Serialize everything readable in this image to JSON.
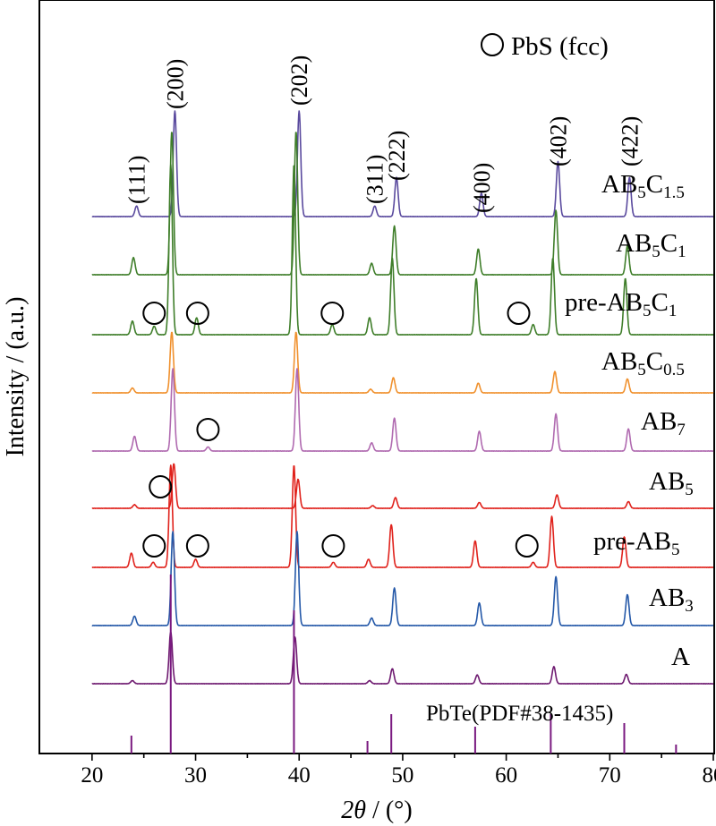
{
  "chart_data": {
    "type": "line",
    "xlabel_var": "2θ",
    "xlabel_unit": " / (°)",
    "ylabel": "Intensity / (a.u.)",
    "xlim": [
      15,
      80
    ],
    "xticks": [
      20,
      30,
      40,
      50,
      60,
      70,
      80
    ],
    "y_ticks_shown": false,
    "grid": false,
    "legend": {
      "marker": "open-circle",
      "label": "PbS (fcc)",
      "placement": "top-right"
    },
    "hkl_labels": [
      {
        "x": 24.3,
        "text": "(111)"
      },
      {
        "x": 28.0,
        "text": "(200)"
      },
      {
        "x": 40.0,
        "text": "(202)"
      },
      {
        "x": 47.3,
        "text": "(311)"
      },
      {
        "x": 49.4,
        "text": "(222)"
      },
      {
        "x": 57.6,
        "text": "(400)"
      },
      {
        "x": 65.0,
        "text": "(402)"
      },
      {
        "x": 71.9,
        "text": "(422)"
      }
    ],
    "series": [
      {
        "name": "AB5C1.5",
        "main": "AB",
        "sub1": "5",
        "mid": "C",
        "sub2": "1.5",
        "color": "#5a4a9e",
        "shift": 0.3,
        "peaks": [
          [
            24.3,
            0.1
          ],
          [
            28.0,
            1.0
          ],
          [
            40.0,
            1.0
          ],
          [
            47.3,
            0.1
          ],
          [
            49.4,
            0.37
          ],
          [
            57.6,
            0.22
          ],
          [
            65.0,
            0.52
          ],
          [
            71.9,
            0.37
          ]
        ]
      },
      {
        "name": "AB5C1",
        "main": "AB",
        "sub1": "5",
        "mid": "C",
        "sub2": "1",
        "color": "#3f7e2a",
        "shift": 0.0,
        "peaks": [
          [
            24.0,
            0.12
          ],
          [
            27.7,
            1.0
          ],
          [
            39.7,
            1.0
          ],
          [
            47.0,
            0.08
          ],
          [
            49.2,
            0.34
          ],
          [
            57.3,
            0.18
          ],
          [
            64.8,
            0.45
          ],
          [
            71.7,
            0.2
          ]
        ]
      },
      {
        "name": "pre-AB5C1",
        "main": "pre-AB",
        "sub1": "5",
        "mid": "C",
        "sub2": "1",
        "color": "#3f7e2a",
        "shift": -0.2,
        "peaks": [
          [
            23.9,
            0.08
          ],
          [
            26.0,
            0.05
          ],
          [
            27.6,
            1.0
          ],
          [
            30.1,
            0.1
          ],
          [
            39.5,
            1.0
          ],
          [
            43.2,
            0.06
          ],
          [
            46.8,
            0.1
          ],
          [
            49.0,
            0.45
          ],
          [
            57.1,
            0.33
          ],
          [
            62.6,
            0.06
          ],
          [
            64.5,
            0.45
          ],
          [
            71.5,
            0.33
          ]
        ]
      },
      {
        "name": "AB5C0.5",
        "main": "AB",
        "sub1": "5",
        "mid": "C",
        "sub2": "0.5",
        "color": "#f0912e",
        "shift": 0.0,
        "peaks": [
          [
            23.9,
            0.08
          ],
          [
            27.7,
            1.0
          ],
          [
            39.7,
            1.0
          ],
          [
            46.9,
            0.06
          ],
          [
            49.1,
            0.25
          ],
          [
            57.3,
            0.16
          ],
          [
            64.7,
            0.35
          ],
          [
            71.7,
            0.23
          ]
        ]
      },
      {
        "name": "AB7",
        "main": "AB",
        "sub1": "7",
        "mid": "",
        "sub2": "",
        "color": "#b06ab0",
        "shift": 0.1,
        "peaks": [
          [
            24.1,
            0.18
          ],
          [
            27.8,
            1.0
          ],
          [
            31.2,
            0.05
          ],
          [
            39.8,
            1.0
          ],
          [
            47.0,
            0.1
          ],
          [
            49.2,
            0.4
          ],
          [
            57.4,
            0.24
          ],
          [
            64.8,
            0.45
          ],
          [
            71.8,
            0.27
          ]
        ]
      },
      {
        "name": "AB5",
        "main": "AB",
        "sub1": "5",
        "mid": "",
        "sub2": "",
        "color": "#e0221c",
        "shift": 0.2,
        "peaks": [
          [
            24.1,
            0.08
          ],
          [
            27.9,
            1.0
          ],
          [
            39.9,
            0.65
          ],
          [
            47.1,
            0.06
          ],
          [
            49.3,
            0.24
          ],
          [
            57.4,
            0.13
          ],
          [
            64.9,
            0.3
          ],
          [
            71.8,
            0.15
          ]
        ]
      },
      {
        "name": "pre-AB5",
        "main": "pre-AB",
        "sub1": "5",
        "mid": "",
        "sub2": "",
        "color": "#e0221c",
        "shift": -0.2,
        "peaks": [
          [
            23.8,
            0.14
          ],
          [
            25.9,
            0.05
          ],
          [
            27.6,
            1.0
          ],
          [
            30.0,
            0.08
          ],
          [
            39.5,
            1.0
          ],
          [
            43.3,
            0.05
          ],
          [
            46.7,
            0.08
          ],
          [
            48.9,
            0.42
          ],
          [
            57.0,
            0.26
          ],
          [
            62.6,
            0.05
          ],
          [
            64.4,
            0.5
          ],
          [
            71.4,
            0.3
          ]
        ]
      },
      {
        "name": "AB3",
        "main": "AB",
        "sub1": "3",
        "mid": "",
        "sub2": "",
        "color": "#2458a8",
        "shift": 0.1,
        "peaks": [
          [
            24.1,
            0.1
          ],
          [
            27.8,
            1.0
          ],
          [
            39.8,
            1.0
          ],
          [
            47.0,
            0.08
          ],
          [
            49.2,
            0.4
          ],
          [
            57.4,
            0.24
          ],
          [
            64.8,
            0.52
          ],
          [
            71.7,
            0.33
          ]
        ]
      },
      {
        "name": "A",
        "main": "A",
        "sub1": "",
        "mid": "",
        "sub2": "",
        "color": "#6e1a70",
        "shift": -0.1,
        "peaks": [
          [
            23.9,
            0.06
          ],
          [
            27.6,
            1.0
          ],
          [
            39.6,
            0.9
          ],
          [
            46.8,
            0.06
          ],
          [
            49.0,
            0.29
          ],
          [
            57.2,
            0.17
          ],
          [
            64.6,
            0.33
          ],
          [
            71.6,
            0.18
          ]
        ]
      }
    ],
    "pbs_markers": [
      {
        "series": "pre-AB5C1",
        "x": [
          26.0,
          30.2,
          43.2,
          61.2
        ]
      },
      {
        "series": "AB7",
        "x": [
          31.2
        ]
      },
      {
        "series": "AB5",
        "x": [
          26.6
        ]
      },
      {
        "series": "pre-AB5",
        "x": [
          26.0,
          30.2,
          43.3,
          62.0
        ]
      }
    ],
    "reference": {
      "name": "PbTe(PDF#38-1435)",
      "color": "#7a1a80",
      "sticks": [
        [
          23.8,
          0.1
        ],
        [
          27.6,
          1.0
        ],
        [
          39.5,
          0.8
        ],
        [
          46.6,
          0.07
        ],
        [
          48.9,
          0.22
        ],
        [
          57.0,
          0.15
        ],
        [
          64.3,
          0.22
        ],
        [
          71.4,
          0.17
        ],
        [
          76.4,
          0.05
        ]
      ]
    }
  }
}
